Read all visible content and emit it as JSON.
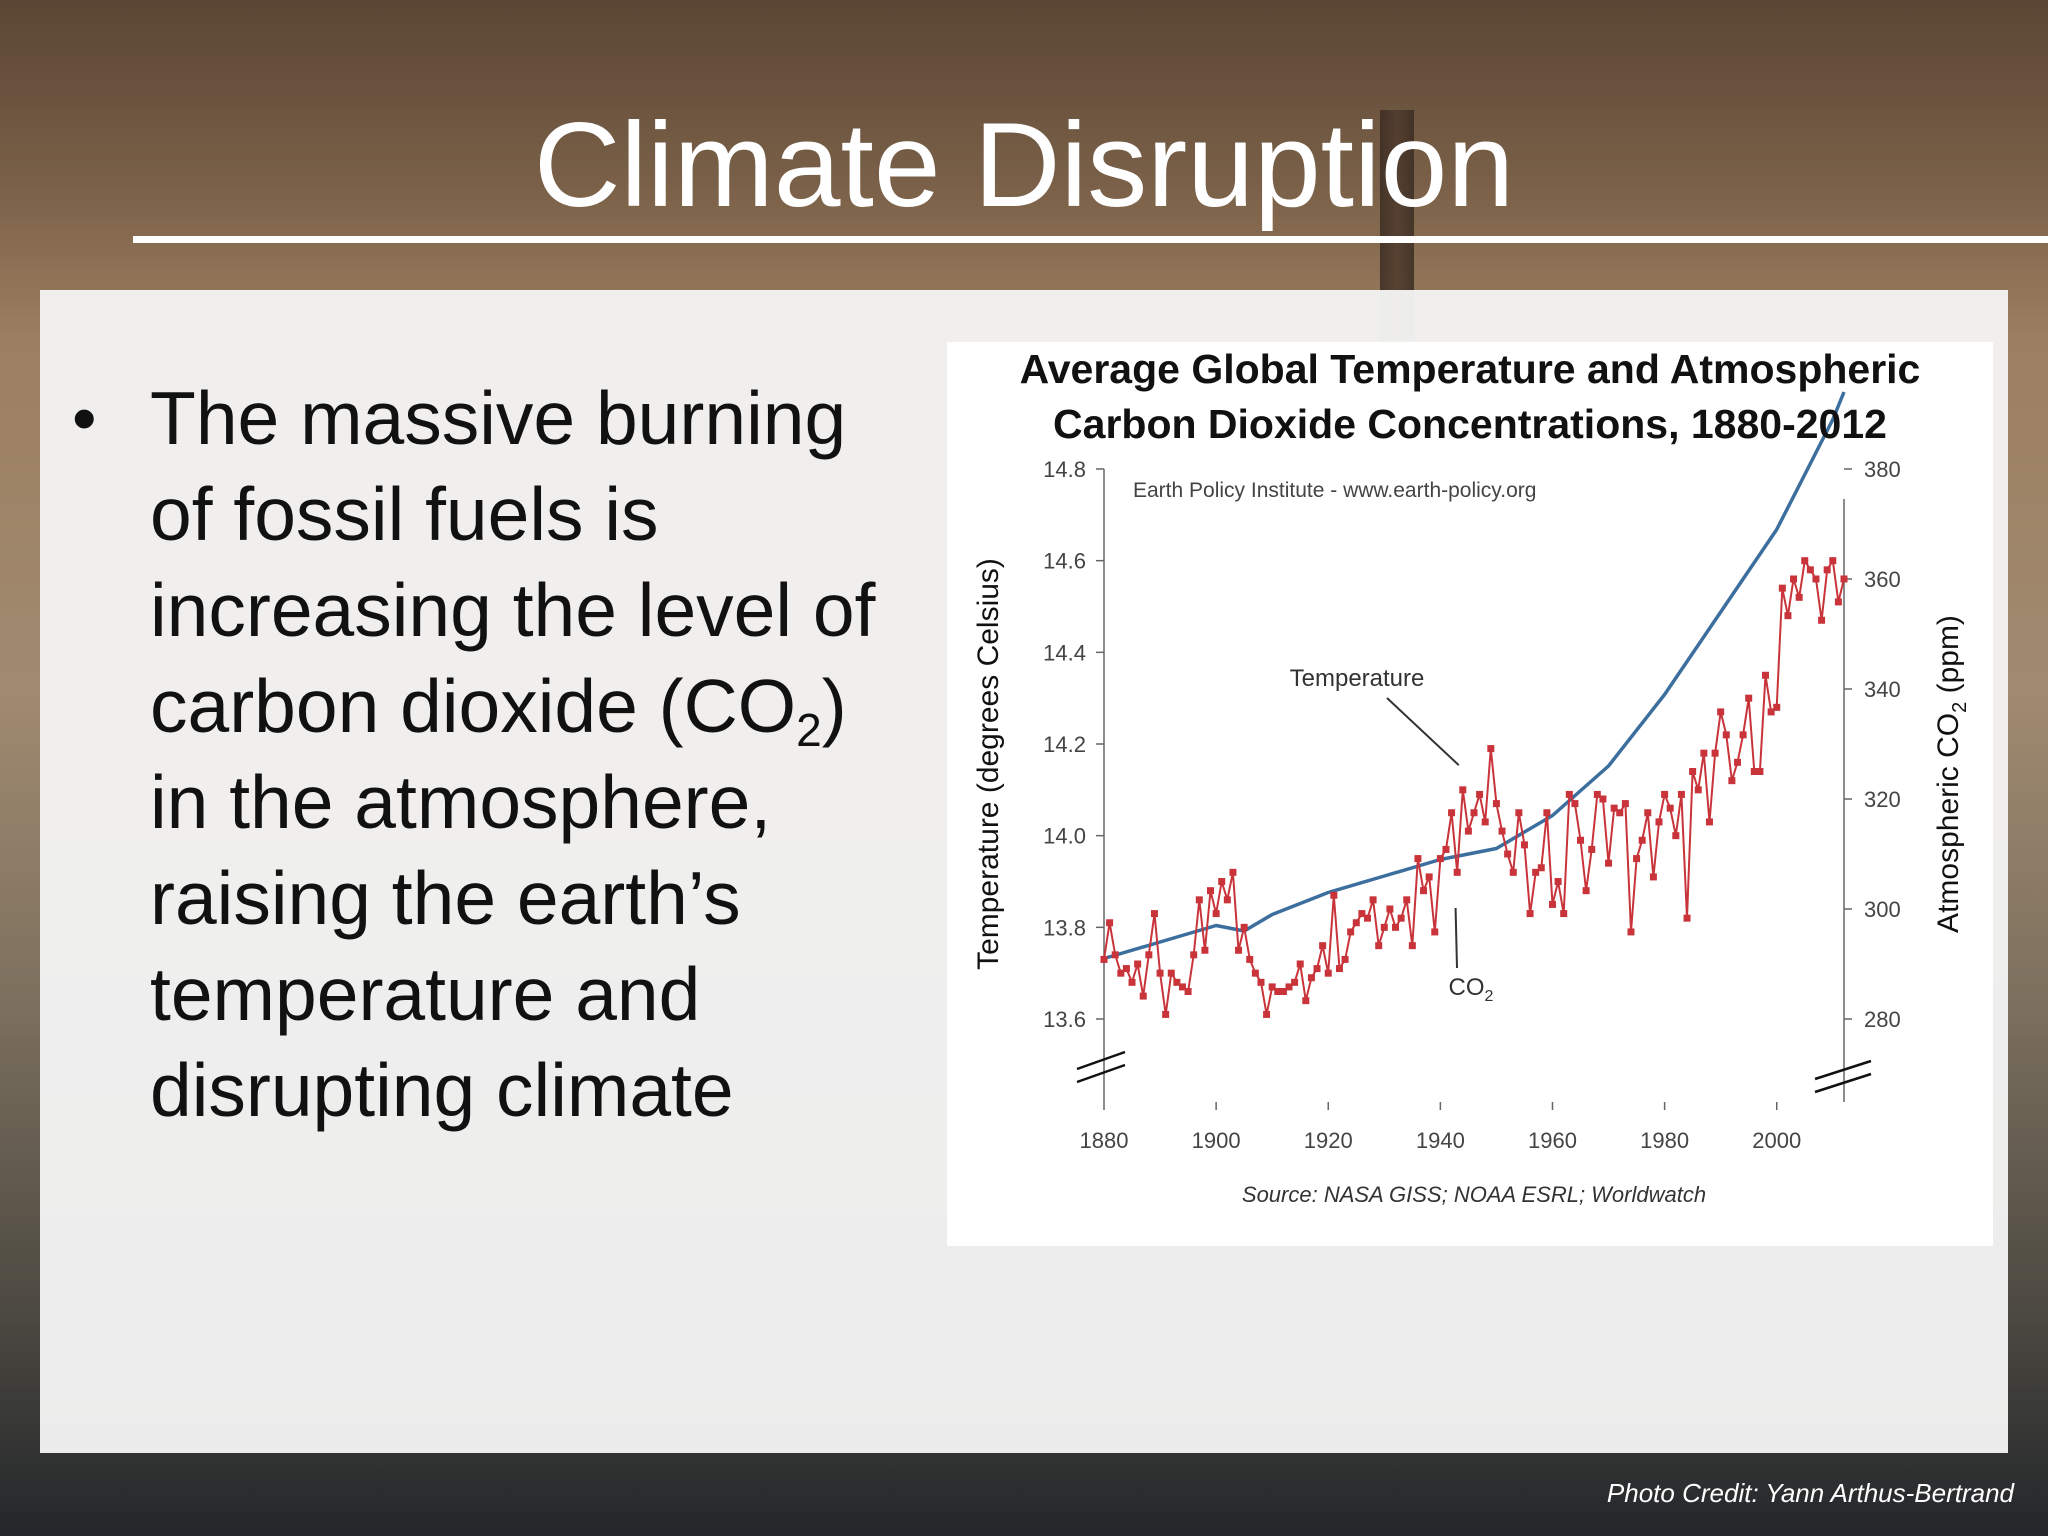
{
  "slide": {
    "title": "Climate Disruption",
    "bullet_lines": [
      "The massive burning",
      "of fossil fuels is",
      "increasing the level of",
      "carbon dioxide (CO",
      "in the atmosphere,",
      "raising the earth’s",
      "temperature and",
      "disrupting climate"
    ],
    "co2_subscript": "2",
    "co2_close": ")",
    "photo_credit": "Photo Credit: Yann Arthus-Bertrand"
  },
  "chart_data": {
    "type": "line",
    "title_lines": [
      "Average Global Temperature and Atmospheric",
      "Carbon Dioxide Concentrations, 1880-2012"
    ],
    "watermark": "Earth Policy Institute - www.earth-policy.org",
    "source": "Source: NASA GISS; NOAA ESRL; Worldwatch",
    "ylabel": "Temperature (degrees Celsius)",
    "ylabel2": "Atmospheric CO",
    "ylabel2_sub": "2",
    "ylabel2_unit": " (ppm)",
    "xlim": [
      1880,
      2012
    ],
    "ylim": [
      13.6,
      14.8
    ],
    "ylim2": [
      280,
      380
    ],
    "xticks": [
      1880,
      1900,
      1920,
      1940,
      1960,
      1980,
      2000
    ],
    "yticks": [
      "13.6",
      "13.8",
      "14.0",
      "14.2",
      "14.4",
      "14.6",
      "14.8"
    ],
    "yticks2": [
      280,
      300,
      320,
      340,
      360,
      380
    ],
    "grid": false,
    "colors": {
      "temperature": "#c8343a",
      "co2": "#3c6e9e"
    },
    "annotations": [
      {
        "text": "Temperature",
        "target_year": 1944,
        "target_value": 14.18
      },
      {
        "text": "CO",
        "sub": "2",
        "target_year": 1942,
        "target_value": 302
      }
    ],
    "series": [
      {
        "name": "Temperature",
        "axis": "left",
        "x": [
          1880,
          1881,
          1882,
          1883,
          1884,
          1885,
          1886,
          1887,
          1888,
          1889,
          1890,
          1891,
          1892,
          1893,
          1894,
          1895,
          1896,
          1897,
          1898,
          1899,
          1900,
          1901,
          1902,
          1903,
          1904,
          1905,
          1906,
          1907,
          1908,
          1909,
          1910,
          1911,
          1912,
          1913,
          1914,
          1915,
          1916,
          1917,
          1918,
          1919,
          1920,
          1921,
          1922,
          1923,
          1924,
          1925,
          1926,
          1927,
          1928,
          1929,
          1930,
          1931,
          1932,
          1933,
          1934,
          1935,
          1936,
          1937,
          1938,
          1939,
          1940,
          1941,
          1942,
          1943,
          1944,
          1945,
          1946,
          1947,
          1948,
          1949,
          1950,
          1951,
          1952,
          1953,
          1954,
          1955,
          1956,
          1957,
          1958,
          1959,
          1960,
          1961,
          1962,
          1963,
          1964,
          1965,
          1966,
          1967,
          1968,
          1969,
          1970,
          1971,
          1972,
          1973,
          1974,
          1975,
          1976,
          1977,
          1978,
          1979,
          1980,
          1981,
          1982,
          1983,
          1984,
          1985,
          1986,
          1987,
          1988,
          1989,
          1990,
          1991,
          1992,
          1993,
          1994,
          1995,
          1996,
          1997,
          1998,
          1999,
          2000,
          2001,
          2002,
          2003,
          2004,
          2005,
          2006,
          2007,
          2008,
          2009,
          2010,
          2011,
          2012
        ],
        "values": [
          13.73,
          13.81,
          13.74,
          13.7,
          13.71,
          13.68,
          13.72,
          13.65,
          13.74,
          13.83,
          13.7,
          13.61,
          13.7,
          13.68,
          13.67,
          13.66,
          13.74,
          13.86,
          13.75,
          13.88,
          13.83,
          13.9,
          13.86,
          13.92,
          13.75,
          13.8,
          13.73,
          13.7,
          13.68,
          13.61,
          13.67,
          13.66,
          13.66,
          13.67,
          13.68,
          13.72,
          13.64,
          13.69,
          13.71,
          13.76,
          13.7,
          13.87,
          13.71,
          13.73,
          13.79,
          13.81,
          13.83,
          13.82,
          13.86,
          13.76,
          13.8,
          13.84,
          13.8,
          13.82,
          13.86,
          13.76,
          13.95,
          13.88,
          13.91,
          13.79,
          13.95,
          13.97,
          14.05,
          13.92,
          14.1,
          14.01,
          14.05,
          14.09,
          14.03,
          14.19,
          14.07,
          14.01,
          13.96,
          13.92,
          14.05,
          13.98,
          13.83,
          13.92,
          13.93,
          14.05,
          13.85,
          13.9,
          13.83,
          14.09,
          14.07,
          13.99,
          13.88,
          13.97,
          14.09,
          14.08,
          13.94,
          14.06,
          14.05,
          14.07,
          13.79,
          13.95,
          13.99,
          14.05,
          13.91,
          14.03,
          14.09,
          14.06,
          14.0,
          14.09,
          13.82,
          14.14,
          14.1,
          14.18,
          14.03,
          14.18,
          14.27,
          14.22,
          14.12,
          14.16,
          14.22,
          14.3,
          14.14,
          14.14,
          14.35,
          14.27,
          14.28,
          14.54,
          14.48,
          14.56,
          14.52,
          14.6,
          14.58,
          14.56,
          14.47,
          14.58,
          14.6,
          14.51,
          14.56
        ]
      },
      {
        "name": "CO2",
        "axis": "right",
        "x": [
          1880,
          1890,
          1900,
          1905,
          1910,
          1920,
          1930,
          1940,
          1950,
          1960,
          1970,
          1980,
          1990,
          2000,
          2005,
          2010,
          2012
        ],
        "values": [
          291,
          294,
          297,
          296,
          299,
          303,
          306,
          309,
          311,
          317,
          326,
          339,
          354,
          369,
          379,
          389,
          394
        ]
      }
    ]
  }
}
